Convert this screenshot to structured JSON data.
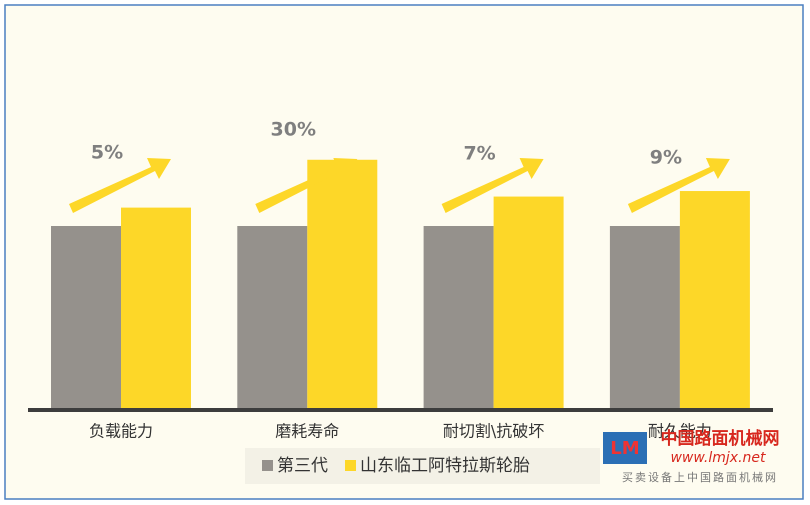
{
  "chart_data": {
    "type": "bar",
    "categories": [
      "负载能力",
      "磨耗寿命",
      "耐切割\\抗破坏",
      "耐久能力"
    ],
    "series": [
      {
        "name": "第三代",
        "color": "#95918c",
        "values": [
          100,
          100,
          100,
          100
        ]
      },
      {
        "name": "山东临工阿特拉斯轮胎",
        "color": "#fdd728",
        "values": [
          110,
          136,
          116,
          119
        ]
      }
    ],
    "annotations": [
      "5%",
      "30%",
      "7%",
      "9%"
    ],
    "legend": "bottom"
  },
  "watermark": {
    "name": "中国路面机械网",
    "url": "www.lmjx.net",
    "slogan": "买卖设备上中国路面机械网"
  }
}
